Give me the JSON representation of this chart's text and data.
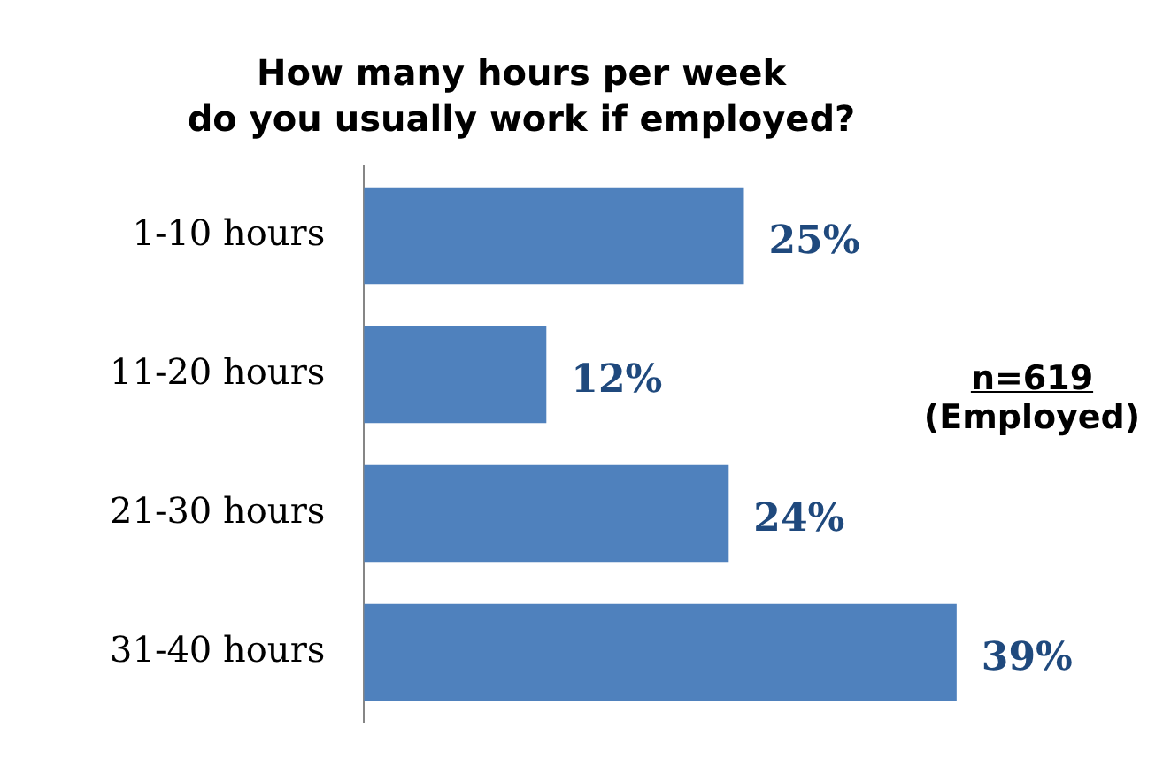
{
  "chart_data": {
    "type": "bar",
    "orientation": "horizontal",
    "title": "How many hours per week\ndo you usually work if employed?",
    "categories": [
      "1-10 hours",
      "11-20 hours",
      "21-30 hours",
      "31-40 hours"
    ],
    "values": [
      25,
      12,
      24,
      39
    ],
    "value_labels": [
      "25%",
      "12%",
      "24%",
      "39%"
    ],
    "color": "#4f81bd",
    "tick_labels": "y",
    "grid": false,
    "legend": false,
    "annotations": [
      "n=619\n(Employed)"
    ]
  }
}
